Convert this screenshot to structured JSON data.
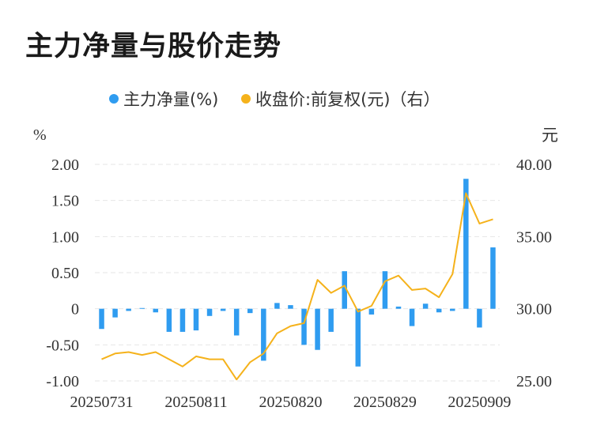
{
  "title": "主力净量与股价走势",
  "chart_data": {
    "type": "bar+line",
    "title": "主力净量与股价走势",
    "legend": [
      {
        "name": "主力净量(%)",
        "color": "#2f9cf0"
      },
      {
        "name": "收盘价:前复权(元)（右）",
        "color": "#f5b21b"
      }
    ],
    "legend_position": "top-center",
    "left_unit": "%",
    "right_unit": "元",
    "left_axis": {
      "ylim": [
        -1.0,
        2.0
      ],
      "ticks": [
        "2.00",
        "1.50",
        "1.00",
        "0.50",
        "0",
        "-0.50",
        "-1.00"
      ],
      "tick_values": [
        2.0,
        1.5,
        1.0,
        0.5,
        0,
        -0.5,
        -1.0
      ]
    },
    "right_axis": {
      "ylim": [
        25.0,
        40.0
      ],
      "ticks": [
        "40.00",
        "35.00",
        "30.00",
        "25.00"
      ],
      "tick_values": [
        40,
        35,
        30,
        25
      ]
    },
    "x_tick_labels": [
      "20250731",
      "20250811",
      "20250820",
      "20250829",
      "20250909"
    ],
    "x_tick_indices": [
      0,
      7,
      14,
      21,
      28
    ],
    "grid": true,
    "series": [
      {
        "name": "主力净量(%)",
        "type": "bar",
        "values": [
          -0.28,
          -0.12,
          -0.03,
          0.01,
          -0.05,
          -0.32,
          -0.32,
          -0.3,
          -0.1,
          -0.03,
          -0.37,
          -0.06,
          -0.72,
          0.08,
          0.05,
          -0.5,
          -0.57,
          -0.32,
          0.52,
          -0.8,
          -0.08,
          0.52,
          0.03,
          -0.24,
          0.07,
          -0.05,
          -0.03,
          1.8,
          -0.26,
          0.85
        ]
      },
      {
        "name": "收盘价:前复权(元)（右）",
        "type": "line",
        "values": [
          26.5,
          26.9,
          27.0,
          26.8,
          27.0,
          26.5,
          26.0,
          26.7,
          26.5,
          26.5,
          25.1,
          26.3,
          26.9,
          28.3,
          28.8,
          29.0,
          32.0,
          31.1,
          31.6,
          29.8,
          30.2,
          31.9,
          32.3,
          31.3,
          31.4,
          30.8,
          32.4,
          38.0,
          35.9,
          36.2
        ]
      }
    ]
  }
}
